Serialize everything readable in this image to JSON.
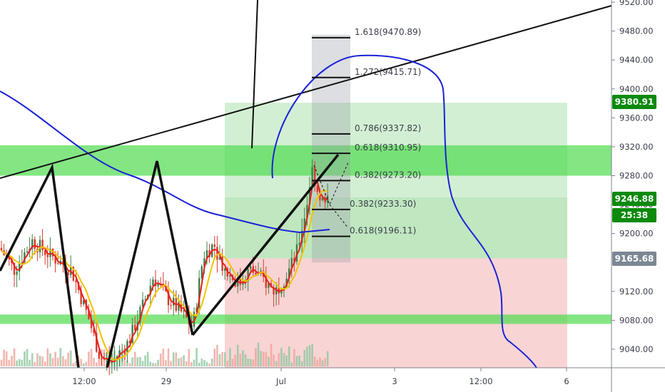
{
  "chart_data": {
    "type": "candlestick",
    "y_axis": {
      "ylim": [
        9010,
        9520
      ],
      "tick_labels": [
        "9520.00",
        "9480.00",
        "9440.00",
        "9400.00",
        "9360.00",
        "9320.00",
        "9280.00",
        "9240.00",
        "9200.00",
        "9120.00",
        "9080.00",
        "9040.00"
      ],
      "tick_values": [
        9520,
        9480,
        9440,
        9400,
        9360,
        9320,
        9280,
        9240,
        9200,
        9120,
        9080,
        9040
      ]
    },
    "x_axis": {
      "tick_labels": [
        "12:00",
        "29",
        "Jul",
        "3",
        "12:00",
        "6"
      ]
    },
    "price_badges": [
      {
        "label": "9380.91",
        "value": 9380.91,
        "color": "#0c8a0c"
      },
      {
        "label": "9246.88",
        "value": 9246.88,
        "color": "#0c8a0c"
      },
      {
        "label": "25:38",
        "value": 9224,
        "color": "#0c8a0c"
      },
      {
        "label": "9165.68",
        "value": 9165.68,
        "color": "#7d8794"
      }
    ],
    "fib_levels": [
      {
        "label": "1.618(9470.89)",
        "value": 9470.89
      },
      {
        "label": "1.272(9415.71)",
        "value": 9415.71
      },
      {
        "label": "0.786(9337.82)",
        "value": 9337.82
      },
      {
        "label": "0.618(9310.95)",
        "value": 9310.95
      },
      {
        "label": "0.382(9273.20)",
        "value": 9273.2
      },
      {
        "label": "0.382(9233.30)",
        "value": 9233.3
      },
      {
        "label": "0.618(9196.11)",
        "value": 9196.11
      }
    ],
    "zones": {
      "green_band_upper": [
        9280,
        9322
      ],
      "green_band_lower": [
        9075,
        9088
      ],
      "target_zone_top": 9380.91,
      "entry": 9165.68,
      "bottom": 9010
    },
    "colors": {
      "ma_fast": "#e8201a",
      "ma_slow": "#f3c200",
      "ma_long": "#1a23d6",
      "candle_up": "#3f7f4a",
      "candle_down": "#d63a2f",
      "band": "#4fdc4f",
      "target": "#9edb9e",
      "stop": "#f7c5c5",
      "badge_green": "#0c8a0c",
      "badge_gray": "#7d8794"
    }
  }
}
